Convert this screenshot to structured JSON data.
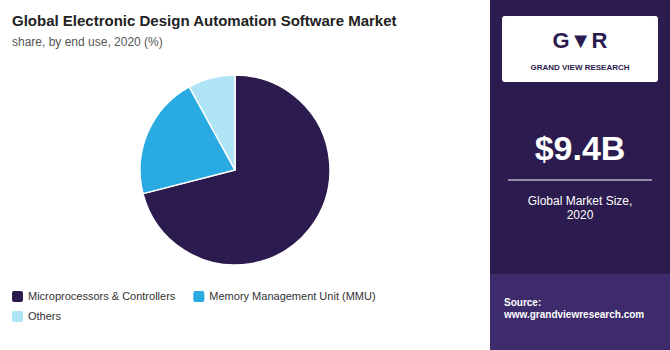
{
  "chart_data": {
    "type": "pie",
    "title": "Global Electronic Design Automation Software Market",
    "subtitle": "share, by end use, 2020 (%)",
    "categories": [
      "Microprocessors & Controllers",
      "Memory Management Unit (MMU)",
      "Others"
    ],
    "values": [
      71,
      21,
      8
    ],
    "colors": [
      "#2B1B4E",
      "#29ABE2",
      "#AEE4F5"
    ],
    "legend": "bottom",
    "annotations": [
      "G▼R",
      "GRAND VIEW RESEARCH",
      "$9.4B",
      "Global Market Size,\n2020",
      "Source:\nwww.grandviewresearch.com"
    ]
  }
}
